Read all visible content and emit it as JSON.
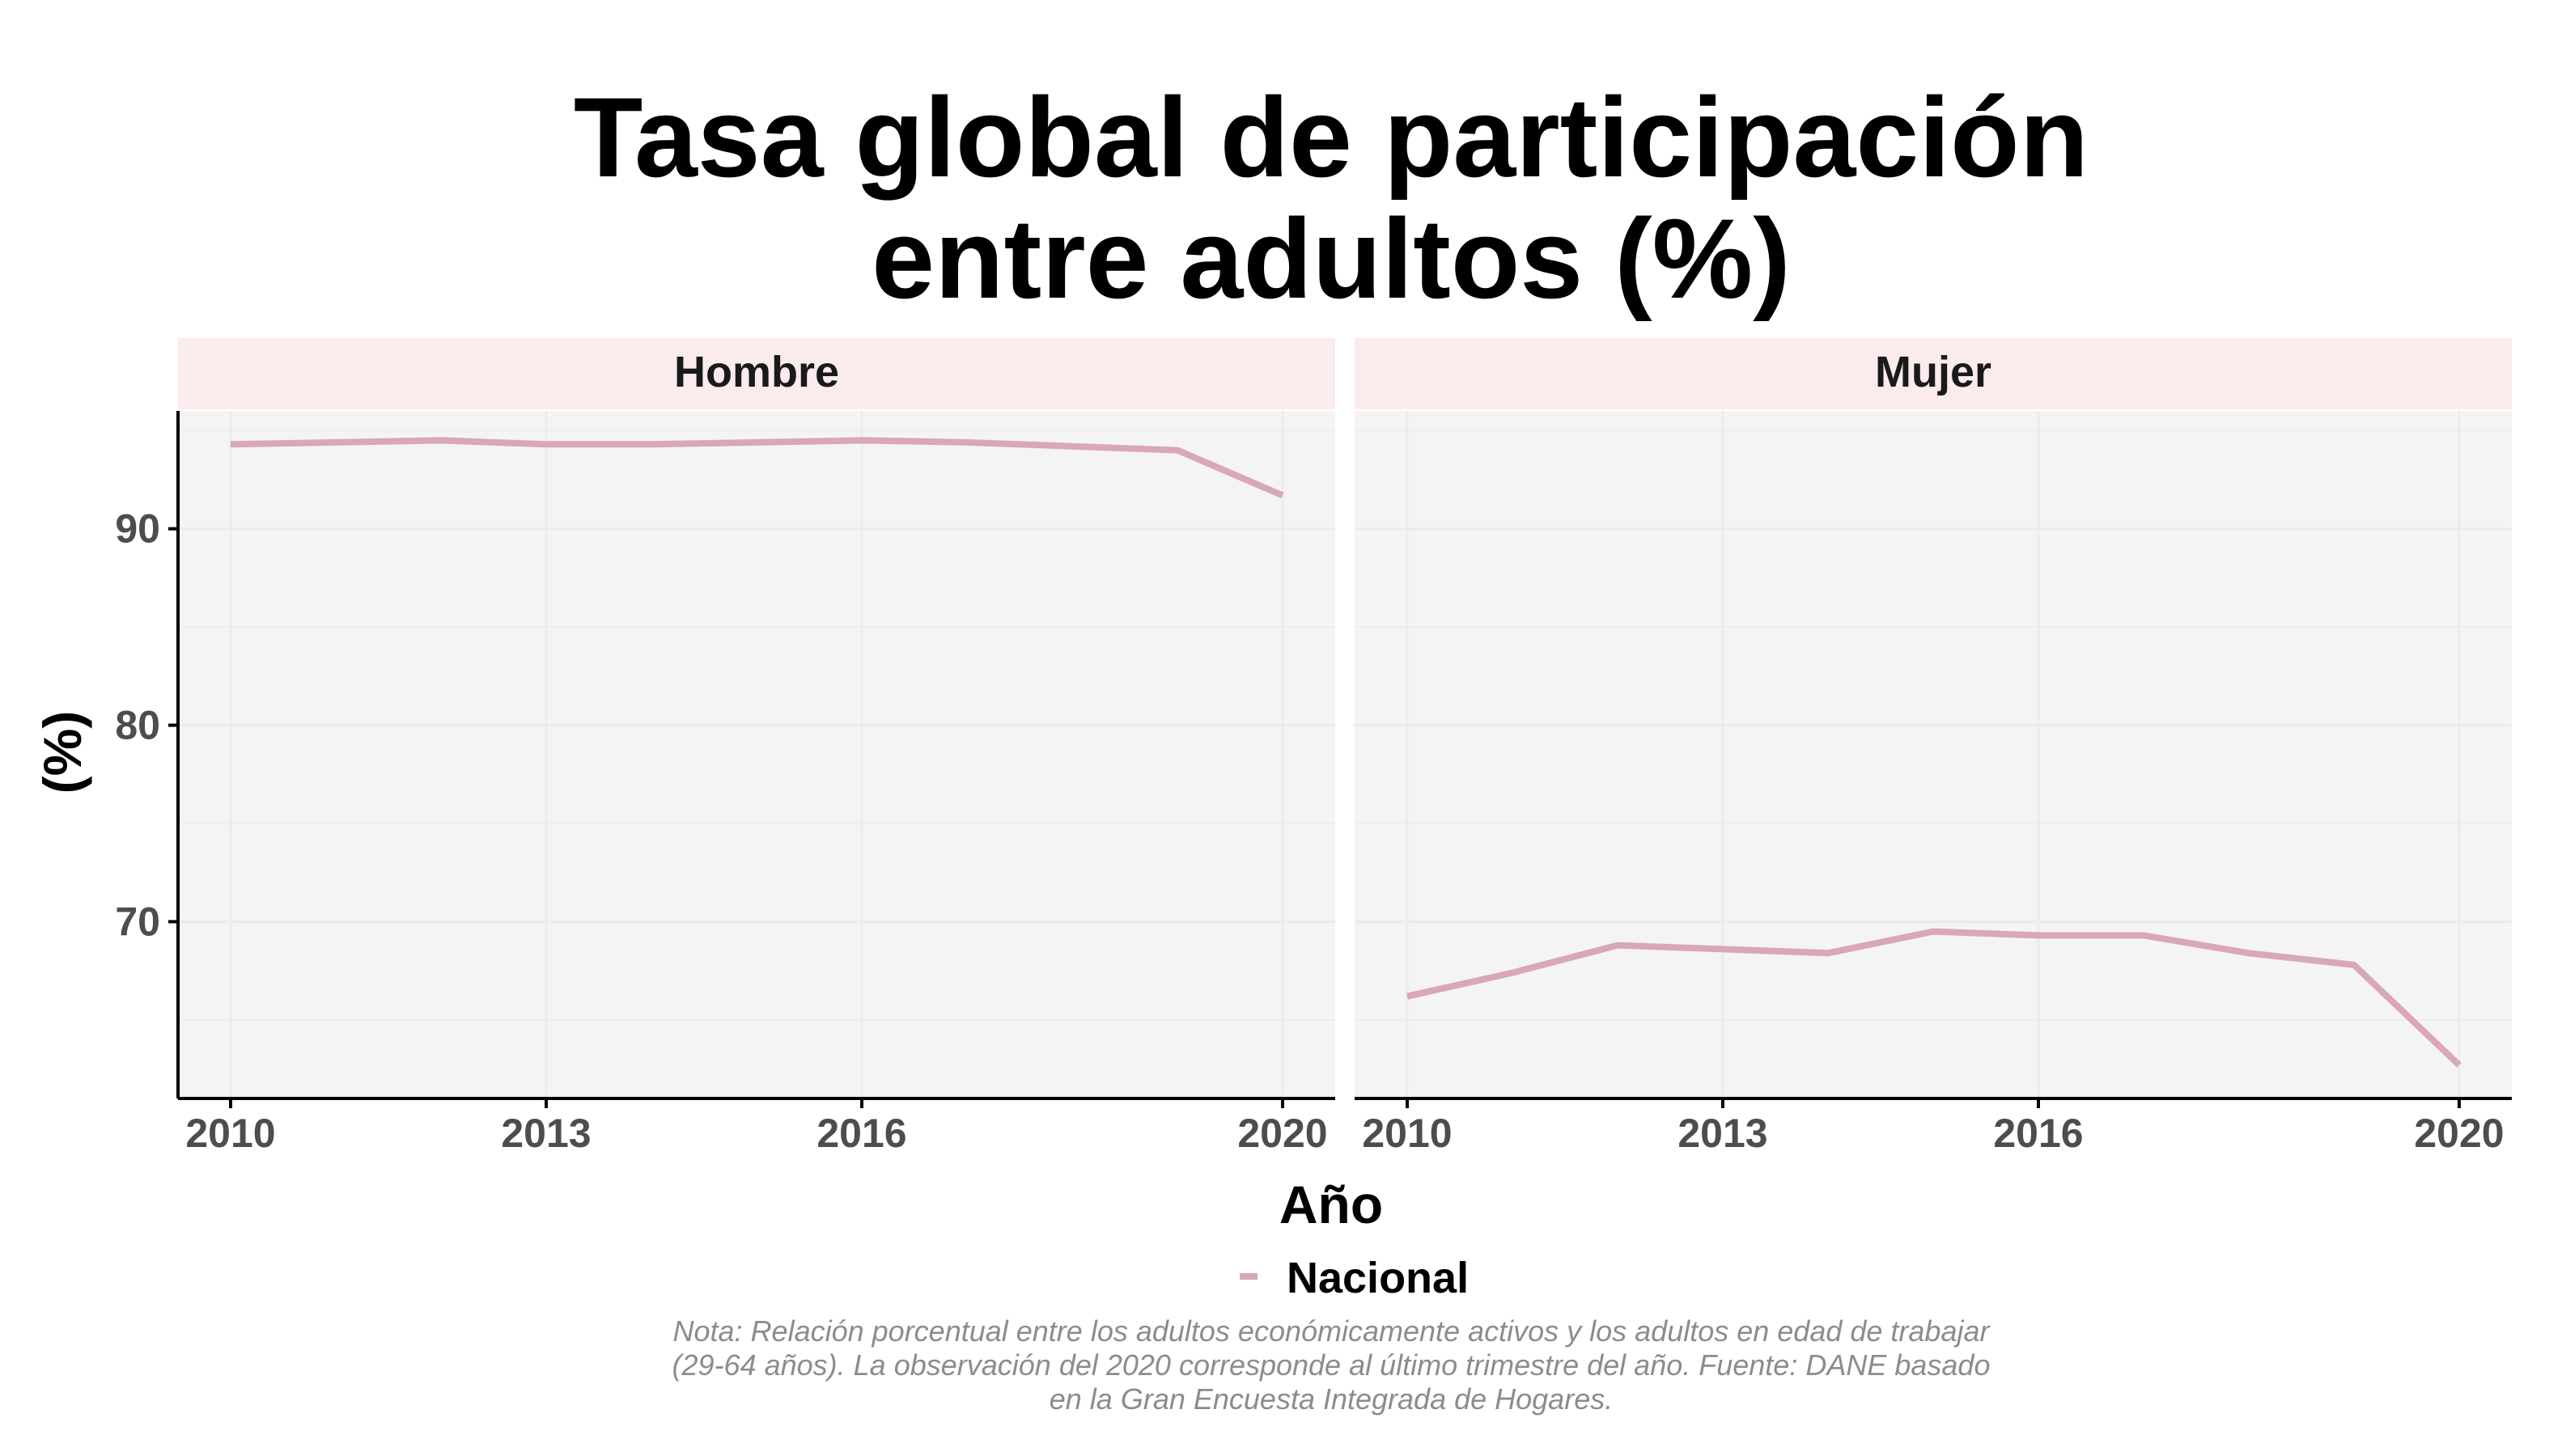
{
  "chart_data": {
    "type": "line",
    "title": [
      "Tasa global de participación",
      "entre adultos (%)"
    ],
    "xlabel": "Año",
    "ylabel": "(%)",
    "x_ticks": [
      2010,
      2013,
      2016,
      2020
    ],
    "y_ticks": [
      70,
      80,
      90
    ],
    "xlim": [
      2009.5,
      2020.5
    ],
    "ylim": [
      61,
      96
    ],
    "grid": true,
    "legend": {
      "position": "bottom",
      "entries": [
        {
          "name": "Nacional",
          "color": "#d9a7b5"
        }
      ]
    },
    "note": [
      "Nota: Relación porcentual entre los adultos económicamente activos y los adultos en edad de trabajar",
      "(29-64 años). La observación del 2020 corresponde al último trimestre del año. Fuente: DANE basado",
      "en la Gran Encuesta Integrada de Hogares."
    ],
    "facets": [
      {
        "label": "Hombre",
        "series": [
          {
            "name": "Nacional",
            "x": [
              2010,
              2011,
              2012,
              2013,
              2014,
              2015,
              2016,
              2017,
              2018,
              2019,
              2020
            ],
            "y": [
              94.3,
              94.4,
              94.5,
              94.3,
              94.3,
              94.4,
              94.5,
              94.4,
              94.2,
              94.0,
              91.7
            ]
          }
        ]
      },
      {
        "label": "Mujer",
        "series": [
          {
            "name": "Nacional",
            "x": [
              2010,
              2011,
              2012,
              2013,
              2014,
              2015,
              2016,
              2017,
              2018,
              2019,
              2020
            ],
            "y": [
              66.2,
              67.4,
              68.8,
              68.6,
              68.4,
              69.5,
              69.3,
              69.3,
              68.4,
              67.8,
              62.7
            ]
          }
        ]
      }
    ]
  },
  "colors": {
    "line": "#d9a7b5",
    "panel_bg": "#f4f4f4",
    "strip_bg": "#faebec",
    "grid": "#ebebeb",
    "axis": "#000000"
  }
}
